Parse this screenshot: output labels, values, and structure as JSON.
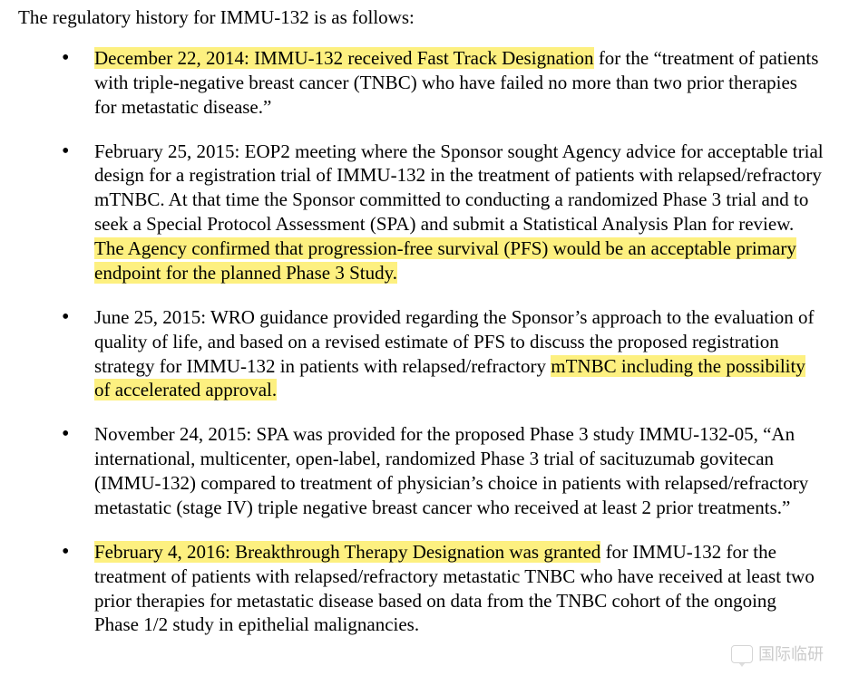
{
  "intro": "The regulatory history for IMMU-132 is as follows:",
  "items": [
    {
      "segments": [
        {
          "text": "December 22, 2014:  IMMU-132 received Fast Track Designation",
          "highlight": true
        },
        {
          "text": " for the “treatment of patients with triple-negative breast cancer (TNBC) who have failed no more than two prior therapies for metastatic disease.”",
          "highlight": false
        }
      ]
    },
    {
      "segments": [
        {
          "text": "February 25, 2015:  EOP2 meeting where the Sponsor sought Agency advice for acceptable trial design for a registration trial of IMMU-132 in the treatment of patients with relapsed/refractory mTNBC.  At that time the Sponsor committed to conducting a randomized Phase 3 trial and to seek a Special Protocol Assessment (SPA) and submit a Statistical Analysis Plan for review. ",
          "highlight": false
        },
        {
          "text": " The Agency confirmed that progression-free survival (PFS) would be an acceptable primary endpoint for the planned Phase 3 Study.",
          "highlight": true
        }
      ]
    },
    {
      "segments": [
        {
          "text": "June 25, 2015:  WRO guidance provided regarding the Sponsor’s approach to the evaluation of quality of life, and based on a revised estimate of PFS to discuss the proposed registration strategy for IMMU-132 in patients with relapsed/refractory ",
          "highlight": false
        },
        {
          "text": "mTNBC including the possibility of accelerated approval.",
          "highlight": true
        }
      ]
    },
    {
      "segments": [
        {
          "text": "November 24, 2015:  SPA was provided for the proposed Phase 3 study IMMU-132-05, “An international, multicenter, open-label, randomized Phase 3 trial of sacituzumab govitecan (IMMU-132) compared to treatment of physician’s choice in patients with relapsed/refractory metastatic (stage IV) triple negative breast cancer who received at least 2 prior treatments.”",
          "highlight": false
        }
      ]
    },
    {
      "segments": [
        {
          "text": "February 4, 2016:  Breakthrough Therapy Designation was granted",
          "highlight": true
        },
        {
          "text": " for IMMU-132 for the treatment of patients with relapsed/refractory metastatic TNBC who have received at least two prior therapies for metastatic disease based on data from the TNBC cohort of the ongoing Phase 1/2 study in epithelial malignancies.",
          "highlight": false
        }
      ]
    }
  ],
  "highlight_color": "#fdf080",
  "text_color": "#000000",
  "background_color": "#ffffff",
  "font_family": "Times New Roman",
  "font_size_pt": 12,
  "watermark_text": "国际临研",
  "watermark_color": "#b6b6b6"
}
